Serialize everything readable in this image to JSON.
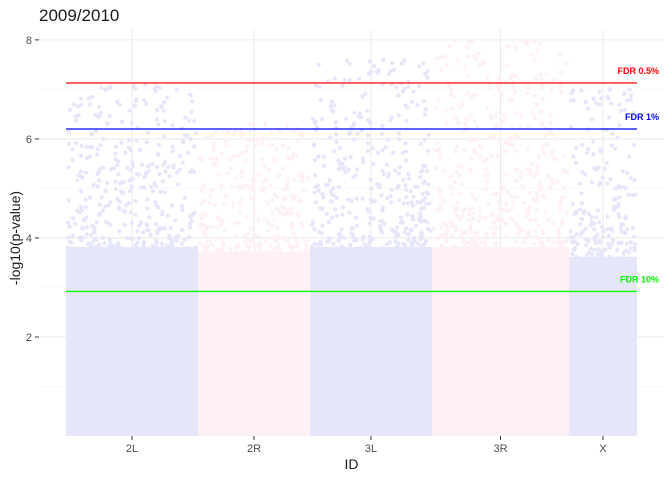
{
  "chart_data": {
    "type": "scatter",
    "title": "2009/2010",
    "xlabel": "ID",
    "ylabel": "-log10(p-value)",
    "ylim": [
      0,
      8.2
    ],
    "yticks": [
      2,
      4,
      6,
      8
    ],
    "categories": [
      "2L",
      "2R",
      "3L",
      "3R",
      "X"
    ],
    "chromosomes": [
      {
        "id": "2L",
        "band_color": "#e6e6fa",
        "point_color": "#e6e6fa",
        "floor": 3.9,
        "peak": 7.1
      },
      {
        "id": "2R",
        "band_color": "#fff0f5",
        "point_color": "#fff0f5",
        "floor": 3.8,
        "peak": 6.3
      },
      {
        "id": "3L",
        "band_color": "#e6e6fa",
        "point_color": "#e6e6fa",
        "floor": 3.9,
        "peak": 7.6
      },
      {
        "id": "3R",
        "band_color": "#fff0f5",
        "point_color": "#fff0f5",
        "floor": 3.9,
        "peak": 8.0
      },
      {
        "id": "X",
        "band_color": "#e6e6fa",
        "point_color": "#e6e6fa",
        "floor": 3.7,
        "peak": 7.0
      }
    ],
    "thresholds": [
      {
        "label": "FDR 0.5%",
        "value": 7.13,
        "color": "#ff0000"
      },
      {
        "label": "FDR 1%",
        "value": 6.2,
        "color": "#0000ff"
      },
      {
        "label": "FDR 10%",
        "value": 2.92,
        "color": "#00ff00"
      }
    ]
  }
}
